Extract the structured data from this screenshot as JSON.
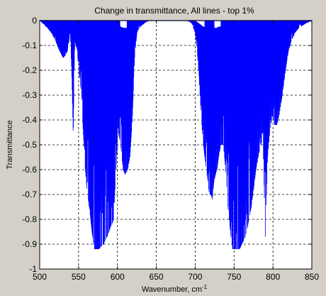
{
  "chart_data": {
    "type": "line",
    "title": "Change in transmittance, All lines - top 1%",
    "xlabel": "Wavenumber, cm",
    "xlabel_superscript": "-1",
    "ylabel": "Transmittance",
    "xlim": [
      500,
      850
    ],
    "ylim": [
      -1,
      0
    ],
    "x_ticks": [
      500,
      550,
      600,
      650,
      700,
      750,
      800,
      850
    ],
    "y_ticks": [
      0,
      -0.1,
      -0.2,
      -0.3,
      -0.4,
      -0.5,
      -0.6,
      -0.7,
      -0.8,
      -0.9,
      -1
    ],
    "grid": "dashed",
    "line_color": "#0000ff",
    "envelope": {
      "x": [
        500,
        510,
        515,
        520,
        525,
        530,
        533,
        536,
        539,
        541,
        543,
        545,
        548,
        550,
        553,
        555,
        558,
        561,
        564,
        567,
        570,
        573,
        576,
        579,
        582,
        585,
        588,
        591,
        593,
        595,
        598,
        601,
        604,
        607,
        610,
        613,
        616,
        619,
        622,
        625,
        628,
        631,
        635,
        640,
        645,
        650,
        660,
        670,
        680,
        690,
        695,
        700,
        703,
        706,
        709,
        712,
        715,
        718,
        720,
        722,
        724,
        726,
        728,
        730,
        733,
        736,
        739,
        742,
        745,
        748,
        751,
        754,
        757,
        760,
        763,
        766,
        769,
        772,
        775,
        778,
        781,
        784,
        787,
        790,
        793,
        796,
        799,
        802,
        805,
        808,
        811,
        814,
        817,
        820,
        824,
        828,
        833,
        838,
        843,
        850
      ],
      "y": [
        0,
        -0.03,
        -0.05,
        -0.08,
        -0.12,
        -0.15,
        -0.14,
        -0.12,
        -0.05,
        -0.2,
        -0.47,
        -0.08,
        -0.12,
        -0.2,
        -0.28,
        -0.4,
        -0.58,
        -0.7,
        -0.76,
        -0.85,
        -0.92,
        -0.92,
        -0.92,
        -0.91,
        -0.9,
        -0.88,
        -0.86,
        -0.83,
        -0.82,
        -0.8,
        -0.6,
        -0.45,
        -0.5,
        -0.6,
        -0.62,
        -0.6,
        -0.55,
        -0.4,
        -0.15,
        -0.05,
        -0.03,
        -0.02,
        -0.01,
        0,
        0,
        0,
        0,
        0,
        0,
        0,
        -0.01,
        -0.05,
        -0.15,
        -0.3,
        -0.45,
        -0.55,
        -0.62,
        -0.7,
        -0.7,
        -0.72,
        -0.65,
        -0.62,
        -0.6,
        -0.55,
        -0.5,
        -0.5,
        -0.6,
        -0.75,
        -0.85,
        -0.92,
        -0.92,
        -0.92,
        -0.92,
        -0.9,
        -0.88,
        -0.85,
        -0.8,
        -0.75,
        -0.68,
        -0.6,
        -0.55,
        -0.5,
        -0.48,
        -0.87,
        -0.55,
        -0.45,
        -0.38,
        -0.42,
        -0.42,
        -0.38,
        -0.32,
        -0.25,
        -0.18,
        -0.12,
        -0.08,
        -0.05,
        -0.03,
        -0.02,
        -0.01,
        0
      ],
      "baseline_gaps": [
        [
          603,
          612
        ],
        [
          700,
          712
        ],
        [
          724,
          733
        ]
      ]
    }
  }
}
